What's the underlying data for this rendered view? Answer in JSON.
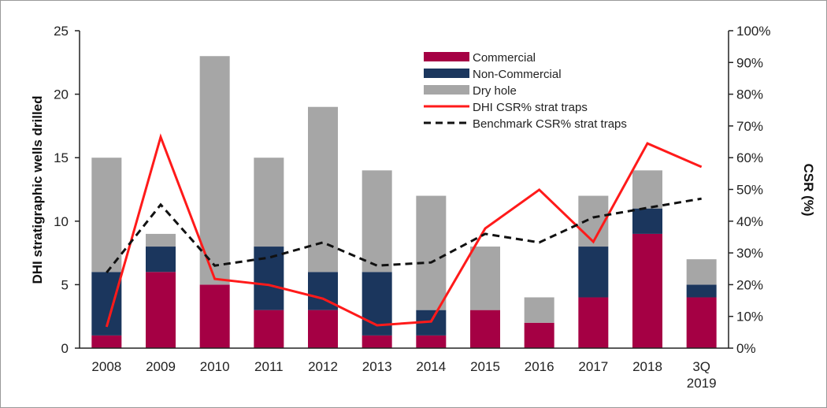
{
  "chart_data": {
    "type": "bar",
    "stacked": true,
    "categories": [
      "2008",
      "2009",
      "2010",
      "2011",
      "2012",
      "2013",
      "2014",
      "2015",
      "2016",
      "2017",
      "2018",
      "3Q 2019"
    ],
    "category_lines": [
      [
        "2008"
      ],
      [
        "2009"
      ],
      [
        "2010"
      ],
      [
        "2011"
      ],
      [
        "2012"
      ],
      [
        "2013"
      ],
      [
        "2014"
      ],
      [
        "2015"
      ],
      [
        "2016"
      ],
      [
        "2017"
      ],
      [
        "2018"
      ],
      [
        "3Q",
        "2019"
      ]
    ],
    "ylabel": "DHI stratigraphic wells drilled",
    "y2label": "CSR (%)",
    "ylim": [
      0,
      25
    ],
    "yticks": [
      "0",
      "5",
      "10",
      "15",
      "20",
      "25"
    ],
    "y2lim": [
      0,
      100
    ],
    "y2ticks": [
      "0%",
      "10%",
      "20%",
      "30%",
      "40%",
      "50%",
      "60%",
      "70%",
      "80%",
      "90%",
      "100%"
    ],
    "grid": false,
    "legend_position": "top-center",
    "series": [
      {
        "name": "Commercial",
        "kind": "bar",
        "axis": "left",
        "color": "#a50044",
        "values": [
          1,
          6,
          5,
          3,
          3,
          1,
          1,
          3,
          2,
          4,
          9,
          4
        ]
      },
      {
        "name": "Non-Commercial",
        "kind": "bar",
        "axis": "left",
        "color": "#1b365d",
        "values": [
          5,
          2,
          0,
          5,
          3,
          5,
          2,
          0,
          0,
          4,
          2,
          1
        ]
      },
      {
        "name": "Dry hole",
        "kind": "bar",
        "axis": "left",
        "color": "#a6a6a6",
        "values": [
          9,
          1,
          18,
          7,
          13,
          8,
          9,
          5,
          2,
          4,
          3,
          2
        ]
      },
      {
        "name": "DHI CSR% strat traps",
        "kind": "line",
        "axis": "right",
        "color": "#ff1a1a",
        "dash": false,
        "values": [
          6.7,
          66.5,
          21.8,
          19.9,
          15.6,
          7.2,
          8.4,
          37.7,
          49.9,
          33.5,
          64.5,
          57.1
        ]
      },
      {
        "name": "Benchmark CSR% strat traps",
        "kind": "line",
        "axis": "right",
        "color": "#111111",
        "dash": true,
        "values": [
          23.8,
          45.2,
          26.0,
          28.5,
          33.3,
          26.0,
          27.0,
          36.0,
          33.3,
          41.2,
          44.2,
          47.1
        ]
      }
    ]
  }
}
